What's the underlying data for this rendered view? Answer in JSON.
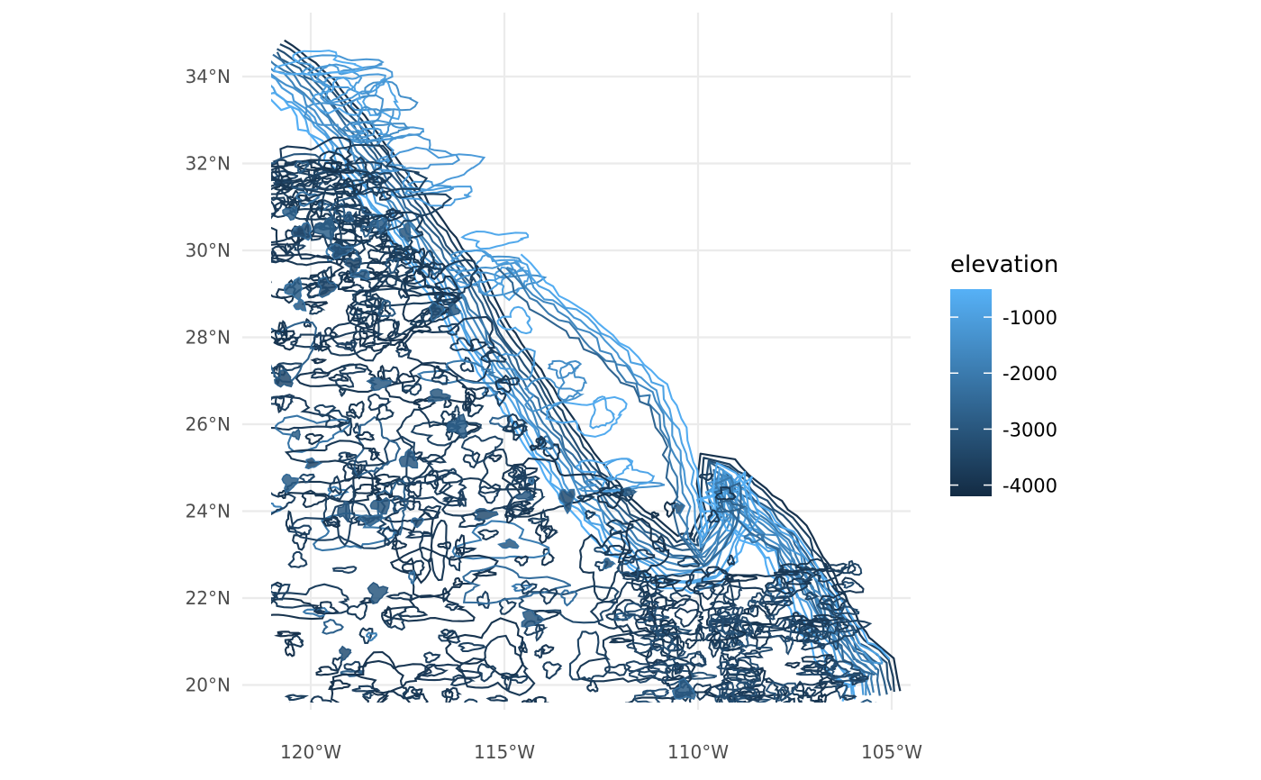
{
  "chart_data": {
    "type": "contour",
    "title": "",
    "xlabel": "",
    "ylabel": "",
    "xlim": [
      -121,
      -104.5
    ],
    "ylim": [
      19.5,
      35
    ],
    "grid": true,
    "legend_position": "right",
    "x_ticks": [
      {
        "value": -120,
        "label": "120°W"
      },
      {
        "value": -115,
        "label": "115°W"
      },
      {
        "value": -110,
        "label": "110°W"
      },
      {
        "value": -105,
        "label": "105°W"
      }
    ],
    "y_ticks": [
      {
        "value": 34,
        "label": "34°N"
      },
      {
        "value": 32,
        "label": "32°N"
      },
      {
        "value": 30,
        "label": "30°N"
      },
      {
        "value": 28,
        "label": "28°N"
      },
      {
        "value": 26,
        "label": "26°N"
      },
      {
        "value": 24,
        "label": "24°N"
      },
      {
        "value": 22,
        "label": "22°N"
      },
      {
        "value": 20,
        "label": "20°N"
      }
    ],
    "legend": {
      "title": "elevation",
      "range": [
        -4200,
        -500
      ],
      "color_low": "#132b43",
      "color_high": "#56b1f7",
      "breaks": [
        {
          "value": -1000,
          "label": "-1000"
        },
        {
          "value": -2000,
          "label": "-2000"
        },
        {
          "value": -3000,
          "label": "-3000"
        },
        {
          "value": -4000,
          "label": "-4000"
        }
      ]
    },
    "continental_margin": [
      [
        -121.0,
        34.5
      ],
      [
        -120.0,
        33.8
      ],
      [
        -119.0,
        32.8
      ],
      [
        -118.0,
        31.6
      ],
      [
        -117.0,
        30.4
      ],
      [
        -116.0,
        29.2
      ],
      [
        -115.3,
        28.0
      ],
      [
        -114.5,
        27.0
      ],
      [
        -113.7,
        25.9
      ],
      [
        -112.8,
        24.7
      ],
      [
        -111.9,
        23.8
      ],
      [
        -110.7,
        23.0
      ],
      [
        -109.9,
        23.0
      ],
      [
        -109.4,
        23.9
      ],
      [
        -109.6,
        25.0
      ],
      [
        -108.6,
        24.2
      ],
      [
        -107.6,
        23.4
      ],
      [
        -106.8,
        22.1
      ],
      [
        -106.0,
        20.8
      ],
      [
        -105.4,
        20.4
      ],
      [
        -105.3,
        19.8
      ]
    ],
    "gulf_coast": [
      [
        -114.7,
        29.8
      ],
      [
        -113.9,
        29.0
      ],
      [
        -112.9,
        28.4
      ],
      [
        -111.9,
        27.6
      ],
      [
        -111.0,
        26.8
      ],
      [
        -110.4,
        25.6
      ],
      [
        -110.1,
        24.4
      ],
      [
        -109.9,
        23.2
      ],
      [
        -109.4,
        23.9
      ],
      [
        -109.4,
        25.0
      ],
      [
        -108.5,
        24.0
      ],
      [
        -107.5,
        23.2
      ],
      [
        -106.7,
        22.2
      ],
      [
        -105.8,
        20.9
      ],
      [
        -105.2,
        20.5
      ]
    ]
  }
}
